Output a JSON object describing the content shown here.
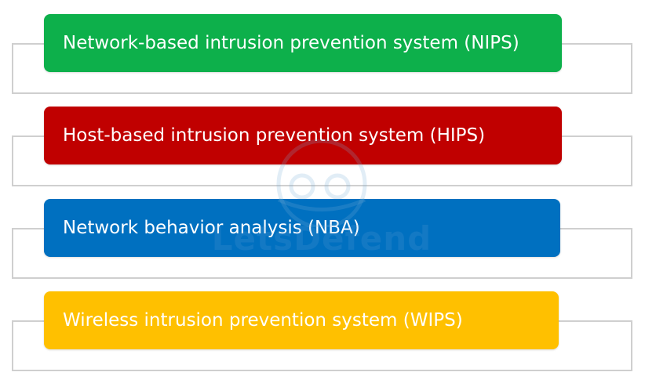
{
  "items": [
    {
      "label": "Network-based intrusion prevention system (NIPS)",
      "color": "#0db04b"
    },
    {
      "label": "Host-based intrusion prevention system (HIPS)",
      "color": "#c00000"
    },
    {
      "label": "Network behavior analysis (NBA)",
      "color": "#0070c0"
    },
    {
      "label": "Wireless intrusion prevention system (WIPS)",
      "color": "#ffc000"
    }
  ],
  "watermark": {
    "text": "LetsDefend",
    "icon": "gear-brain-icon"
  }
}
